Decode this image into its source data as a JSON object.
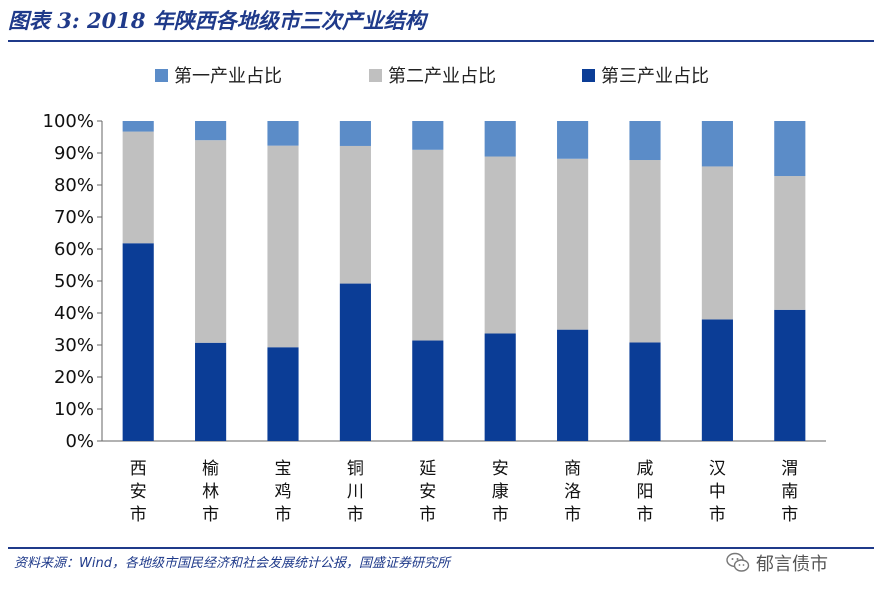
{
  "title": "图表 3:  2018 年陕西各地级市三次产业结构",
  "source": "资料来源：Wind，各地级市国民经济和社会发展统计公报，国盛证券研究所",
  "watermark": {
    "text": "郁言债市",
    "icon": "wechat-icon"
  },
  "colors": {
    "primary": "#5b8cc8",
    "secondary": "#c0c0c0",
    "tertiary": "#0b3d96",
    "title": "#1f3a8a"
  },
  "chart_data": {
    "type": "bar",
    "stacked": true,
    "percent": true,
    "categories": [
      "西安市",
      "榆林市",
      "宝鸡市",
      "铜川市",
      "延安市",
      "安康市",
      "商洛市",
      "咸阳市",
      "汉中市",
      "渭南市"
    ],
    "series": [
      {
        "name": "第三产业占比",
        "values": [
          61.8,
          30.7,
          29.3,
          49.2,
          31.4,
          33.6,
          34.8,
          30.8,
          38.0,
          41.0
        ]
      },
      {
        "name": "第二产业占比",
        "values": [
          34.9,
          63.3,
          63.0,
          43.0,
          59.6,
          55.3,
          53.4,
          57.0,
          47.8,
          41.8
        ]
      },
      {
        "name": "第一产业占比",
        "values": [
          3.3,
          6.0,
          7.7,
          7.8,
          9.0,
          11.1,
          11.8,
          12.2,
          14.2,
          17.2
        ]
      }
    ],
    "legend": [
      "第一产业占比",
      "第二产业占比",
      "第三产业占比"
    ],
    "yticks": [
      "0%",
      "10%",
      "20%",
      "30%",
      "40%",
      "50%",
      "60%",
      "70%",
      "80%",
      "90%",
      "100%"
    ],
    "ylim": [
      0,
      100
    ],
    "grid": false,
    "legend_position": "top"
  }
}
